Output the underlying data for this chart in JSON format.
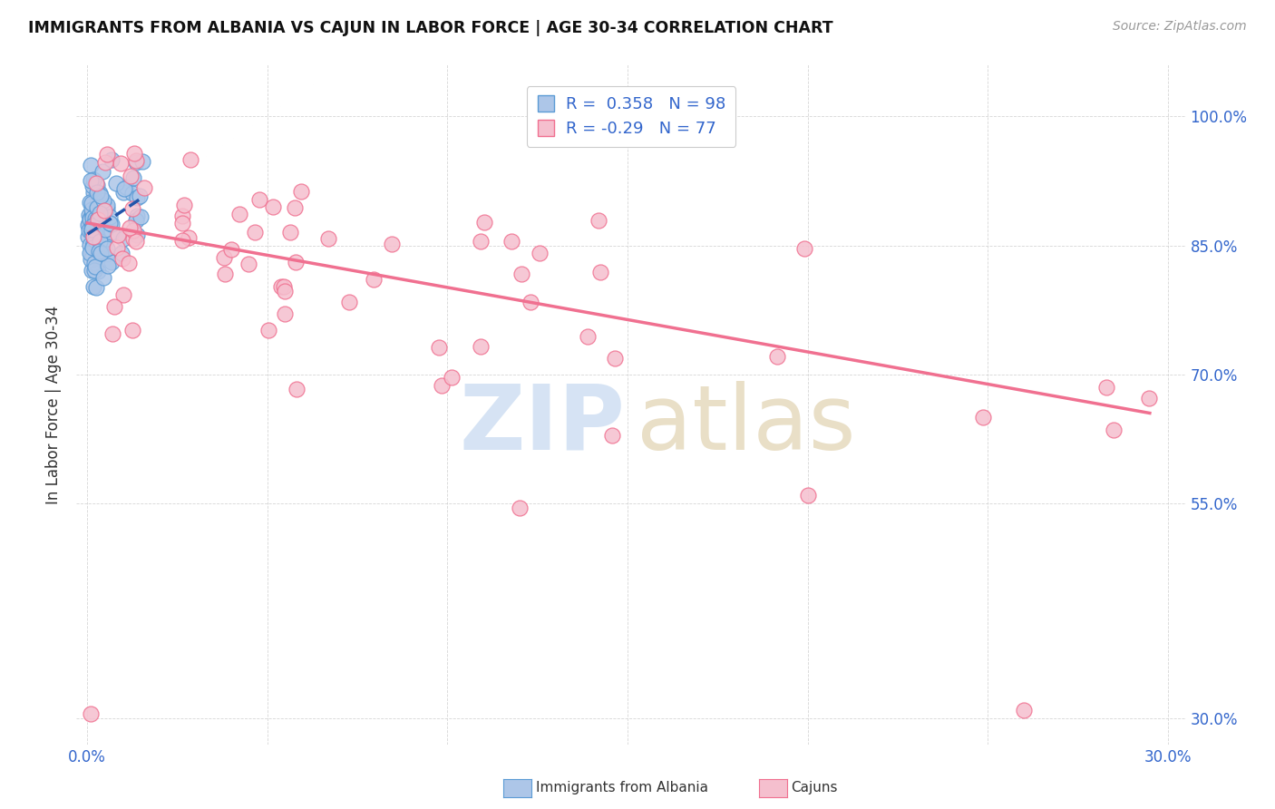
{
  "title": "IMMIGRANTS FROM ALBANIA VS CAJUN IN LABOR FORCE | AGE 30-34 CORRELATION CHART",
  "source": "Source: ZipAtlas.com",
  "ylabel": "In Labor Force | Age 30-34",
  "xlim": [
    -0.003,
    0.305
  ],
  "ylim": [
    0.27,
    1.06
  ],
  "x_ticks": [
    0.0,
    0.05,
    0.1,
    0.15,
    0.2,
    0.25,
    0.3
  ],
  "y_ticks": [
    0.3,
    0.55,
    0.7,
    0.85,
    1.0
  ],
  "y_tick_labels": [
    "30.0%",
    "55.0%",
    "70.0%",
    "85.0%",
    "100.0%"
  ],
  "albania_R": 0.358,
  "albania_N": 98,
  "cajun_R": -0.29,
  "cajun_N": 77,
  "albania_color": "#adc6e8",
  "albania_edge_color": "#5b9bd5",
  "cajun_color": "#f5bfce",
  "cajun_edge_color": "#f07090",
  "trend_albania_color": "#2255aa",
  "trend_cajun_color": "#f07090",
  "watermark_zip_color": "#c5d8f0",
  "watermark_atlas_color": "#d4c090",
  "legend_label_albania": "Immigrants from Albania",
  "legend_label_cajun": "Cajuns",
  "cajun_trend_x0": 0.0,
  "cajun_trend_y0": 0.876,
  "cajun_trend_x1": 0.295,
  "cajun_trend_y1": 0.655
}
